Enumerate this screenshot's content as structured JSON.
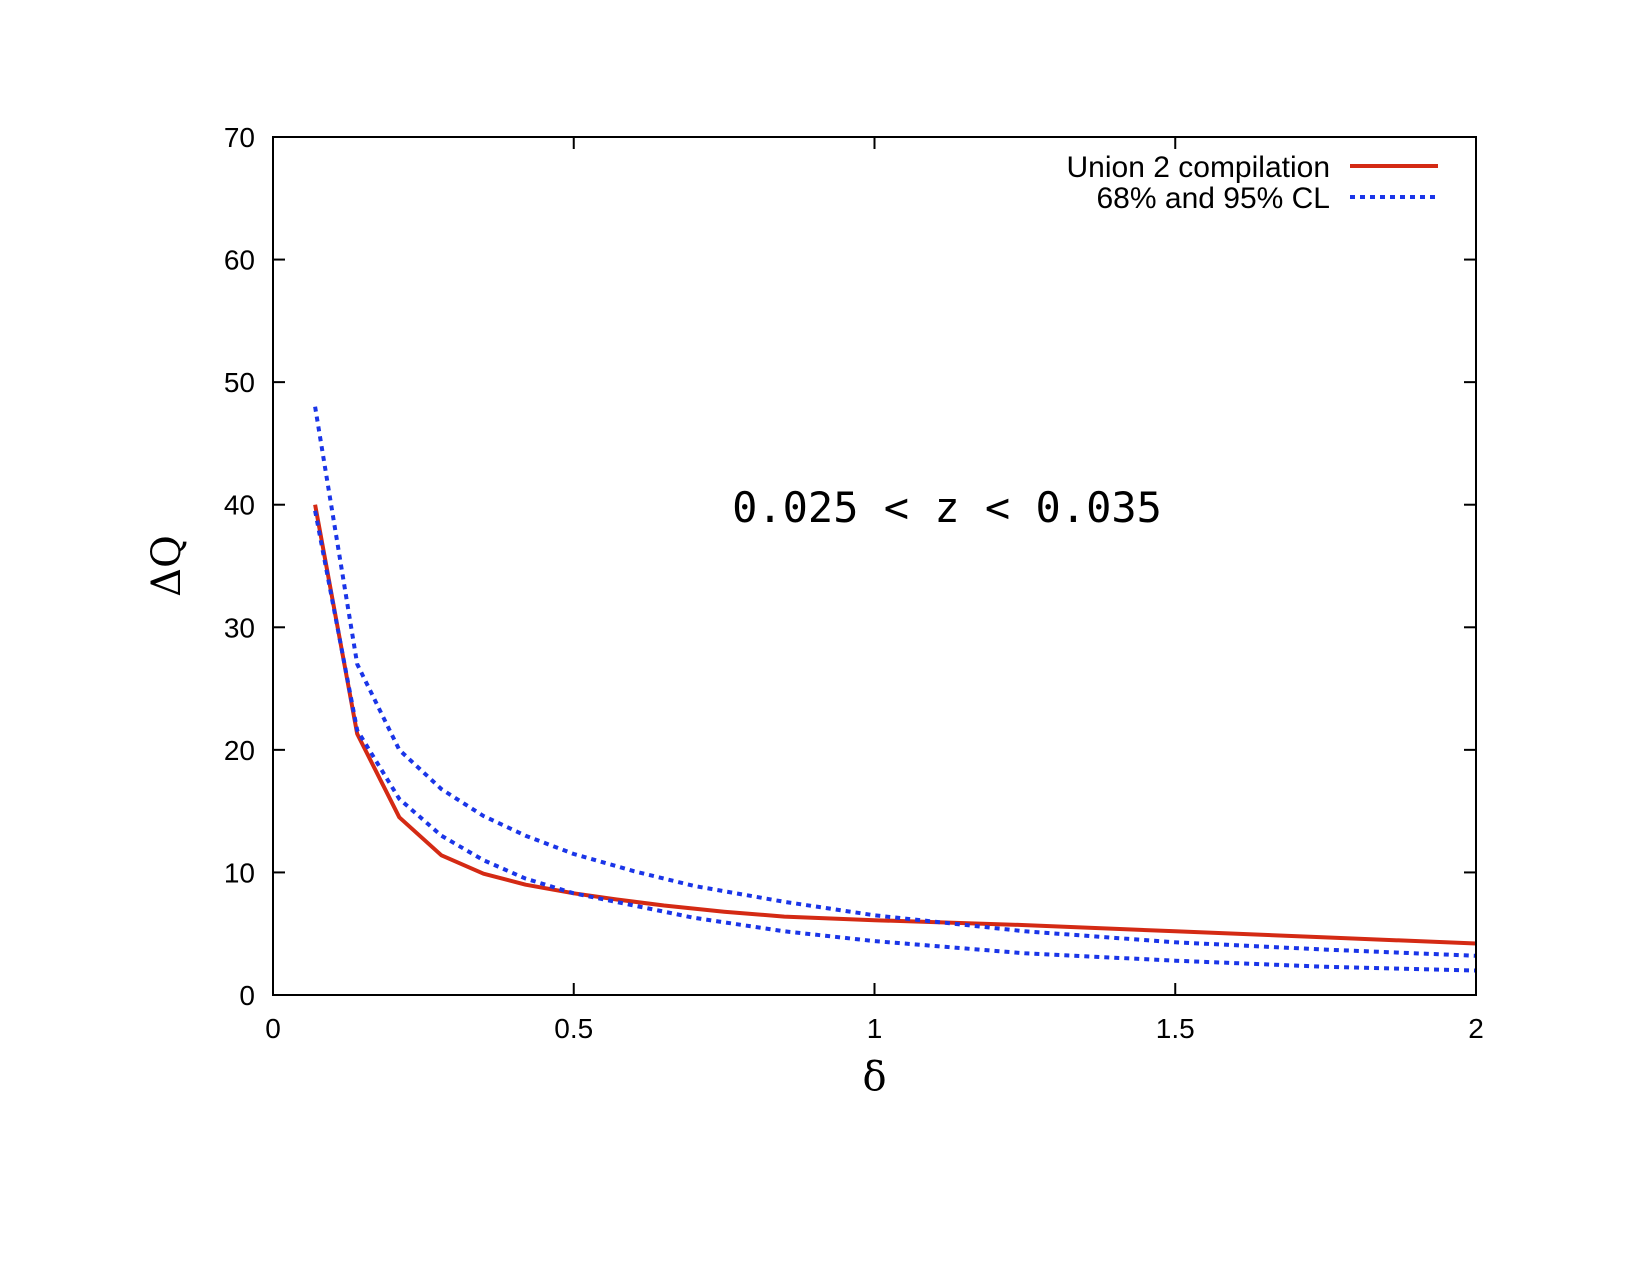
{
  "chart_data": {
    "type": "line",
    "xlabel": "δ",
    "ylabel": "ΔQ",
    "xlim": [
      0,
      2
    ],
    "ylim": [
      0,
      70
    ],
    "xticks": [
      0,
      0.5,
      1,
      1.5,
      2
    ],
    "xtick_labels": [
      "0",
      "0.5",
      "1",
      "1.5",
      "2"
    ],
    "yticks": [
      0,
      10,
      20,
      30,
      40,
      50,
      60,
      70
    ],
    "ytick_labels": [
      "0",
      "10",
      "20",
      "30",
      "40",
      "50",
      "60",
      "70"
    ],
    "grid": false,
    "legend_position": "top-right",
    "annotation": "0.025 < z < 0.035",
    "legend": [
      {
        "label": "Union 2 compilation",
        "color": "#d42a14",
        "style": "solid"
      },
      {
        "label": "68% and 95% CL",
        "color": "#1a35e8",
        "style": "dotted"
      }
    ],
    "series": [
      {
        "legend_index": 0,
        "color": "#d42a14",
        "style": "solid",
        "x": [
          0.07,
          0.14,
          0.21,
          0.28,
          0.35,
          0.42,
          0.5,
          0.57,
          0.65,
          0.75,
          0.85,
          1.0,
          1.25,
          1.5,
          1.75,
          2.0
        ],
        "y": [
          40,
          21.3,
          14.5,
          11.4,
          9.9,
          9.0,
          8.3,
          7.8,
          7.3,
          6.8,
          6.4,
          6.1,
          5.7,
          5.2,
          4.7,
          4.2
        ]
      },
      {
        "legend_index": 1,
        "color": "#1a35e8",
        "style": "dotted",
        "x": [
          0.07,
          0.14,
          0.21,
          0.28,
          0.35,
          0.42,
          0.5,
          0.6,
          0.7,
          0.85,
          1.0,
          1.25,
          1.5,
          1.75,
          2.0
        ],
        "y": [
          48,
          27,
          20,
          16.8,
          14.6,
          13.0,
          11.5,
          10.1,
          8.9,
          7.6,
          6.5,
          5.2,
          4.3,
          3.7,
          3.2
        ]
      },
      {
        "color": "#1a35e8",
        "style": "dotted",
        "x": [
          0.07,
          0.14,
          0.21,
          0.28,
          0.35,
          0.42,
          0.5,
          0.6,
          0.7,
          0.85,
          1.0,
          1.25,
          1.5,
          1.75,
          2.0
        ],
        "y": [
          39.5,
          21.6,
          16.0,
          13.0,
          11.0,
          9.5,
          8.3,
          7.3,
          6.3,
          5.2,
          4.4,
          3.4,
          2.8,
          2.3,
          2.0
        ]
      }
    ]
  }
}
